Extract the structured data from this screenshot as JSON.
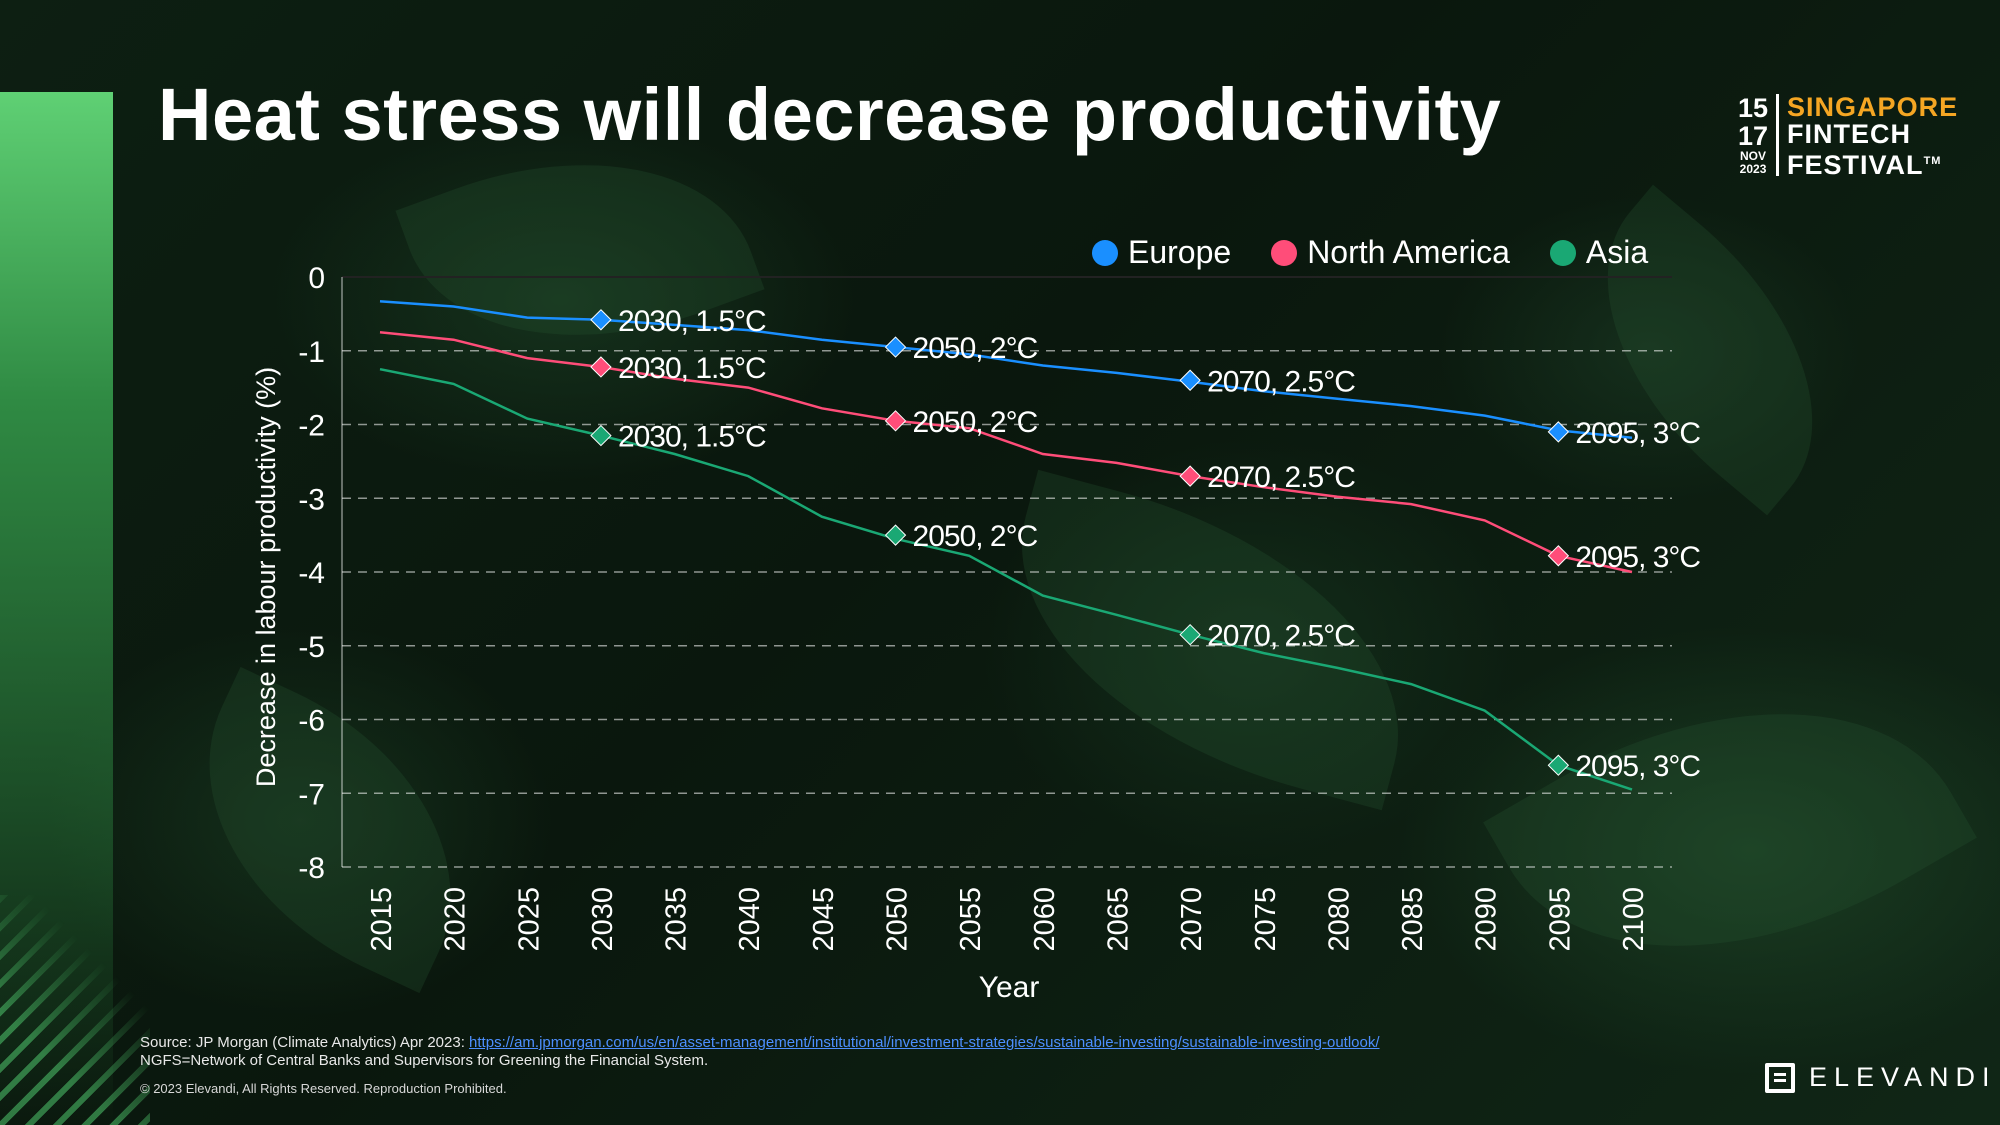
{
  "slide": {
    "title": "Heat stress will decrease productivity"
  },
  "event_logo": {
    "date_start": "15",
    "date_end": "17",
    "month": "NOV",
    "year": "2023",
    "line1": "SINGAPORE",
    "line2": "FINTECH",
    "line3": "FESTIVAL",
    "trademark": "TM"
  },
  "chart_data": {
    "type": "line",
    "title": "",
    "xlabel": "Year",
    "ylabel": "Decrease in labour productivity (%)",
    "x": [
      2015,
      2020,
      2025,
      2030,
      2035,
      2040,
      2045,
      2050,
      2055,
      2060,
      2065,
      2070,
      2075,
      2080,
      2085,
      2090,
      2095,
      2100
    ],
    "xticks": [
      "2015",
      "2020",
      "2025",
      "2030",
      "2035",
      "2040",
      "2045",
      "2050",
      "2055",
      "2060",
      "2065",
      "2070",
      "2075",
      "2080",
      "2085",
      "2090",
      "2095",
      "2100"
    ],
    "yticks": [
      "0",
      "-1",
      "-2",
      "-3",
      "-4",
      "-5",
      "-6",
      "-7",
      "-8"
    ],
    "ylim": [
      -8,
      0
    ],
    "grid": "horizontal dashed",
    "legend_position": "top-right",
    "series": [
      {
        "name": "Europe",
        "color": "#1a8fff",
        "values": [
          -0.33,
          -0.4,
          -0.55,
          -0.58,
          -0.65,
          -0.72,
          -0.85,
          -0.95,
          -1.05,
          -1.2,
          -1.3,
          -1.42,
          -1.55,
          -1.65,
          -1.75,
          -1.88,
          -2.08,
          -2.18
        ],
        "markers": [
          {
            "x": 2030,
            "y": -0.58,
            "label": "2030, 1.5°C"
          },
          {
            "x": 2050,
            "y": -0.95,
            "label": "2050, 2°C"
          },
          {
            "x": 2070,
            "y": -1.4,
            "label": "2070, 2.5°C"
          },
          {
            "x": 2095,
            "y": -2.1,
            "label": "2095, 3°C"
          }
        ]
      },
      {
        "name": "North America",
        "color": "#ff4d79",
        "values": [
          -0.75,
          -0.85,
          -1.1,
          -1.22,
          -1.38,
          -1.5,
          -1.78,
          -1.95,
          -2.05,
          -2.4,
          -2.52,
          -2.7,
          -2.85,
          -2.98,
          -3.08,
          -3.3,
          -3.78,
          -4.0
        ],
        "markers": [
          {
            "x": 2030,
            "y": -1.22,
            "label": "2030, 1.5°C"
          },
          {
            "x": 2050,
            "y": -1.95,
            "label": "2050, 2°C"
          },
          {
            "x": 2070,
            "y": -2.7,
            "label": "2070, 2.5°C"
          },
          {
            "x": 2095,
            "y": -3.78,
            "label": "2095, 3°C"
          }
        ]
      },
      {
        "name": "Asia",
        "color": "#1aa874",
        "values": [
          -1.25,
          -1.45,
          -1.92,
          -2.15,
          -2.4,
          -2.7,
          -3.25,
          -3.55,
          -3.78,
          -4.32,
          -4.58,
          -4.85,
          -5.1,
          -5.3,
          -5.52,
          -5.88,
          -6.62,
          -6.95
        ],
        "markers": [
          {
            "x": 2030,
            "y": -2.15,
            "label": "2030, 1.5°C"
          },
          {
            "x": 2050,
            "y": -3.5,
            "label": "2050, 2°C"
          },
          {
            "x": 2070,
            "y": -4.85,
            "label": "2070, 2.5°C"
          },
          {
            "x": 2095,
            "y": -6.62,
            "label": "2095, 3°C"
          }
        ]
      }
    ]
  },
  "footer": {
    "source_prefix": "Source: JP Morgan (Climate Analytics) Apr 2023: ",
    "source_link": "https://am.jpmorgan.com/us/en/asset-management/institutional/investment-strategies/sustainable-investing/sustainable-investing-outlook/",
    "note": "NGFS=Network of Central Banks and Supervisors for Greening the Financial System.",
    "copyright": "© 2023 Elevandi, All Rights Reserved. Reproduction Prohibited."
  },
  "brand": {
    "name": "ELEVANDI"
  }
}
